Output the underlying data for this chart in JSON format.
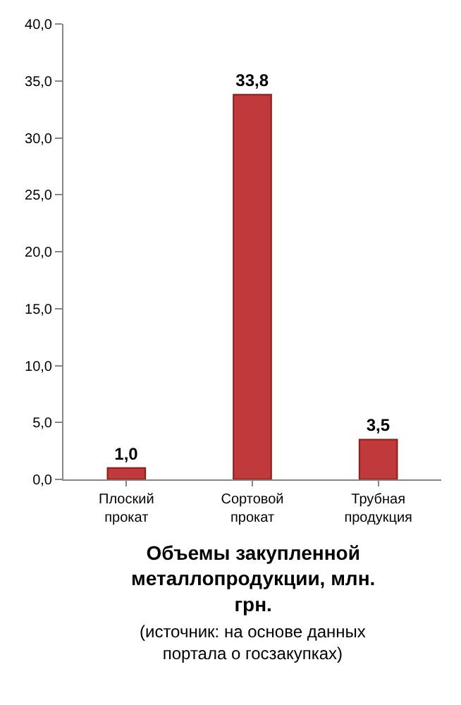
{
  "chart_data": {
    "type": "bar",
    "title": "Объемы закупленной металлопродукции, млн. грн.",
    "subtitle": "(источник: на основе данных портала о госзакупках)",
    "categories": [
      "Плоский  прокат",
      "Сортовой прокат",
      "Трубная продукция"
    ],
    "values": [
      1.0,
      33.8,
      3.5
    ],
    "color": "#c0393b",
    "value_labels": [
      "1,0",
      "33,8",
      "3,5"
    ],
    "ylim": [
      0,
      40
    ],
    "yticks": [
      {
        "value": 0,
        "label": "0,0"
      },
      {
        "value": 5,
        "label": "5,0"
      },
      {
        "value": 10,
        "label": "10,0"
      },
      {
        "value": 15,
        "label": "15,0"
      },
      {
        "value": 20,
        "label": "20,0"
      },
      {
        "value": 25,
        "label": "25,0"
      },
      {
        "value": 30,
        "label": "30,0"
      },
      {
        "value": 35,
        "label": "35,0"
      },
      {
        "value": 40,
        "label": "40,0"
      }
    ],
    "legend": false
  }
}
